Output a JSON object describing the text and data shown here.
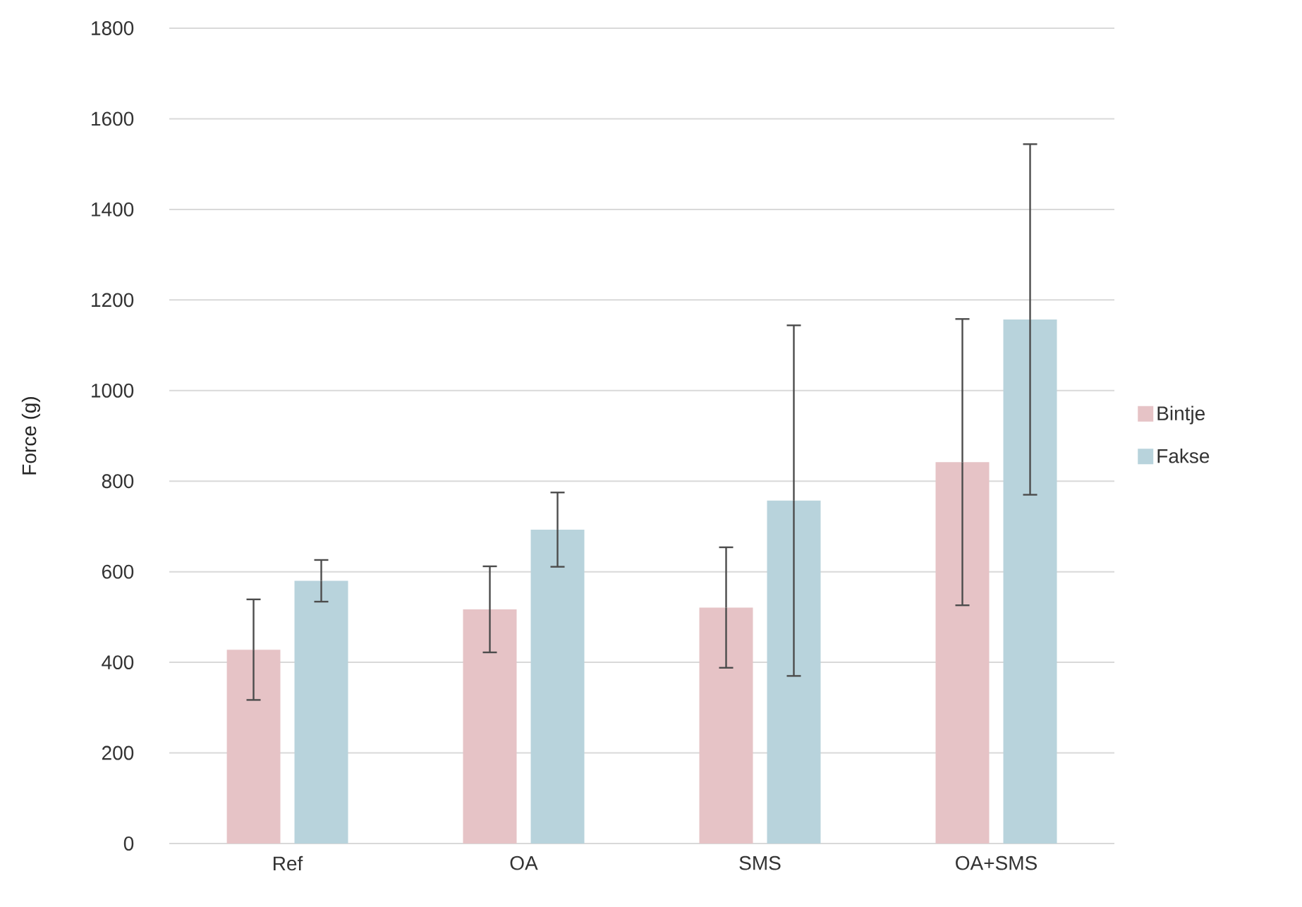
{
  "chart_data": {
    "type": "bar",
    "ylabel": "Force (g)",
    "categories": [
      "Ref",
      "OA",
      "SMS",
      "OA+SMS"
    ],
    "series": [
      {
        "name": "Bintje",
        "color": "#e6c3c6",
        "values": [
          428,
          517,
          521,
          842
        ],
        "errors": [
          111,
          95,
          133,
          316
        ]
      },
      {
        "name": "Fakse",
        "color": "#b8d3dc",
        "values": [
          580,
          693,
          757,
          1157
        ],
        "errors": [
          46,
          82,
          387,
          387
        ]
      }
    ],
    "ylim": [
      0,
      1800
    ],
    "yticks": [
      0,
      200,
      400,
      600,
      800,
      1000,
      1200,
      1400,
      1600,
      1800
    ],
    "grid": "y",
    "legend": "right"
  }
}
